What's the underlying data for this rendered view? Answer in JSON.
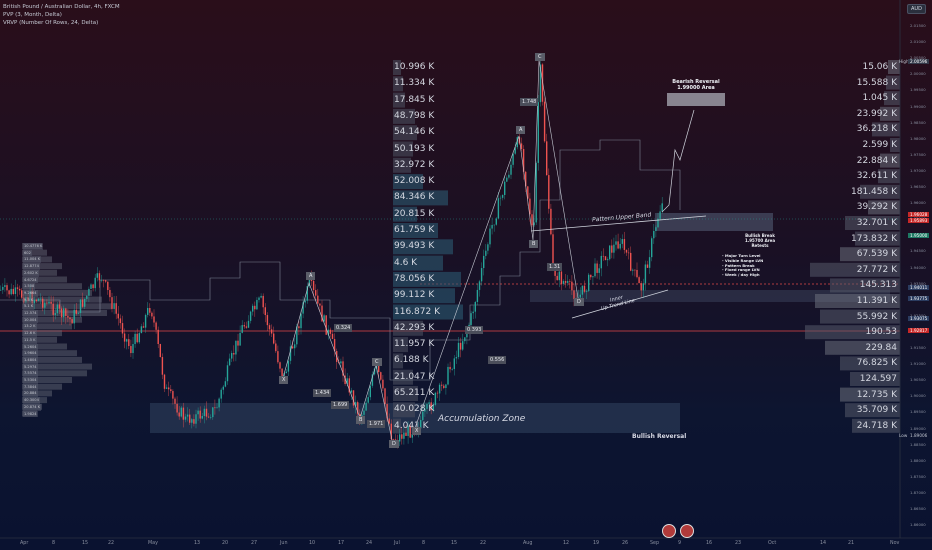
{
  "legend": {
    "title": "British Pound / Australian Dollar, 4h, FXCM",
    "indicator1": "PVP (3, Month, Delta)",
    "indicator2": "VRVP (Number Of Rows, 24, Delta)"
  },
  "currency_badge": "AUD",
  "volume_labels": [
    "10.996 K",
    "11.334 K",
    "17.845 K",
    "48.798 K",
    "54.146 K",
    "50.193 K",
    "32.972 K",
    "52.008 K",
    "84.346 K",
    "20.815 K",
    "61.759 K",
    "99.493 K",
    "4.6 K",
    "78.056 K",
    "99.112 K",
    "116.872 K",
    "42.293 K",
    "11.957 K",
    "6.188 K",
    "21.047 K",
    "65.211 K",
    "40.028 K",
    "4.041 K"
  ],
  "right_volume_labels": [
    "15.06 K",
    "15.588 K",
    "1.045 K",
    "23.992 K",
    "36.218 K",
    "2.599 K",
    "22.884 K",
    "32.611 K",
    "181.458 K",
    "39.292 K",
    "32.701 K",
    "173.832 K",
    "67.539 K",
    "27.772 K",
    "145.313",
    "11.391 K",
    "55.992 K",
    "190.53",
    "229.84",
    "76.825 K",
    "124.597",
    "12.735 K",
    "35.709 K",
    "24.718 K"
  ],
  "left_small_list": [
    "10.4776 K",
    "602",
    "11.004 K",
    "12.8774",
    "2.602 K",
    "4.6724",
    "1.508",
    "9.2664",
    "9.3 K",
    "5.1 K",
    "12.574",
    "10.004",
    "13.2 K",
    "12.6 K",
    "11.5 K",
    "5.2604",
    "1.9604",
    "1.4804",
    "5.2974",
    "7.5574",
    "5.5304",
    "7.3844",
    "20.884",
    "40.3004",
    "20.874 K",
    "1.9824"
  ],
  "wave_labels": {
    "A_left": "A",
    "X_left": "X",
    "B_left": "B",
    "C_left": "C",
    "D_left": "D",
    "A_right": "A",
    "B_right": "B",
    "C_right": "C",
    "D_right": "D",
    "X_right": "X"
  },
  "ratios": [
    "0.324",
    "1.434",
    "1.699",
    "1.971",
    "0.393",
    "0.556",
    "1.748",
    "1.31"
  ],
  "annotations": {
    "bearish": "Bearish Reversal\n1.99000 Area",
    "pattern_upper": "Pattern Upper Band",
    "bullish_break": "Bullish Break\n1.95700 Area\nRetests",
    "major_turn": "- Major Turn Level\n- Visible Range LVN\n- Pattern Break\n- Fixed range LVN\n- Week / day High",
    "inner": "Inner\nUp Trend Line",
    "accumulation": "Accumulation Zone",
    "bullish_rev": "Bullish Reversal"
  },
  "price_axis": [
    "2.01500",
    "2.01000",
    "2.00500",
    "2.00000",
    "1.99500",
    "1.99000",
    "1.98500",
    "1.98000",
    "1.97500",
    "1.97000",
    "1.96500",
    "1.96000",
    "1.95500",
    "1.95000",
    "1.94500",
    "1.94000",
    "1.93500",
    "1.93000",
    "1.92500",
    "1.92000",
    "1.91500",
    "1.91000",
    "1.90500",
    "1.90000",
    "1.89500",
    "1.89000",
    "1.88500",
    "1.88000",
    "1.87500",
    "1.87000",
    "1.86500",
    "1.86000"
  ],
  "price_tags": {
    "high_label": "High",
    "high_val": "2.00596",
    "cur1": "1.96028",
    "cur2": "1.95893",
    "cur3": "1.95000",
    "mid1": "1.94011",
    "mid2": "1.93775",
    "mid3": "1.93075",
    "mid4": "1.92817",
    "low_label": "Low",
    "low_val": "1.89006"
  },
  "time_axis": [
    "Apr",
    "8",
    "15",
    "22",
    "May",
    "13",
    "20",
    "27",
    "Jun",
    "10",
    "17",
    "24",
    "Jul",
    "8",
    "15",
    "22",
    "Aug",
    "12",
    "19",
    "26",
    "Sep",
    "9",
    "16",
    "23",
    "Oct",
    "14",
    "21",
    "Nov"
  ],
  "colors": {
    "up": "#26a69a",
    "down": "#ef5350",
    "red_line": "#e84a4a",
    "zone": "#2e4a6a"
  }
}
